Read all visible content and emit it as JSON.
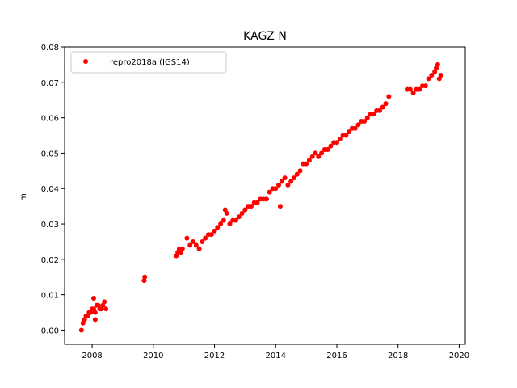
{
  "chart_data": {
    "type": "scatter",
    "title": "KAGZ N",
    "xlabel": "",
    "ylabel": "m",
    "xlim": [
      2007.1,
      2020.2
    ],
    "ylim": [
      -0.004,
      0.08
    ],
    "x_ticks": [
      2008,
      2010,
      2012,
      2014,
      2016,
      2018,
      2020
    ],
    "y_ticks": [
      0.0,
      0.01,
      0.02,
      0.03,
      0.04,
      0.05,
      0.06,
      0.07,
      0.08
    ],
    "x_tick_labels": [
      "2008",
      "2010",
      "2012",
      "2014",
      "2016",
      "2018",
      "2020"
    ],
    "y_tick_labels": [
      "0.00",
      "0.01",
      "0.02",
      "0.03",
      "0.04",
      "0.05",
      "0.06",
      "0.07",
      "0.08"
    ],
    "grid": false,
    "legend": {
      "position": "upper-left",
      "entries": [
        "repro2018a (IGS14)"
      ]
    },
    "series": [
      {
        "name": "repro2018a (IGS14)",
        "color": "#ff0000",
        "marker": "circle",
        "points": [
          [
            2007.65,
            0.0
          ],
          [
            2007.7,
            0.002
          ],
          [
            2007.75,
            0.003
          ],
          [
            2007.8,
            0.004
          ],
          [
            2007.85,
            0.004
          ],
          [
            2007.9,
            0.005
          ],
          [
            2007.95,
            0.005
          ],
          [
            2008.0,
            0.006
          ],
          [
            2008.05,
            0.006
          ],
          [
            2008.1,
            0.005
          ],
          [
            2008.15,
            0.007
          ],
          [
            2008.2,
            0.007
          ],
          [
            2008.25,
            0.006
          ],
          [
            2008.3,
            0.006
          ],
          [
            2008.35,
            0.007
          ],
          [
            2008.4,
            0.008
          ],
          [
            2008.45,
            0.006
          ],
          [
            2008.05,
            0.009
          ],
          [
            2008.1,
            0.003
          ],
          [
            2009.7,
            0.014
          ],
          [
            2009.72,
            0.015
          ],
          [
            2010.75,
            0.021
          ],
          [
            2010.8,
            0.022
          ],
          [
            2010.85,
            0.023
          ],
          [
            2010.9,
            0.022
          ],
          [
            2010.95,
            0.023
          ],
          [
            2011.1,
            0.026
          ],
          [
            2011.2,
            0.024
          ],
          [
            2011.3,
            0.025
          ],
          [
            2011.4,
            0.024
          ],
          [
            2011.5,
            0.023
          ],
          [
            2011.6,
            0.025
          ],
          [
            2011.7,
            0.026
          ],
          [
            2011.8,
            0.027
          ],
          [
            2011.9,
            0.027
          ],
          [
            2012.0,
            0.028
          ],
          [
            2012.1,
            0.029
          ],
          [
            2012.2,
            0.03
          ],
          [
            2012.3,
            0.031
          ],
          [
            2012.4,
            0.033
          ],
          [
            2012.5,
            0.03
          ],
          [
            2012.6,
            0.031
          ],
          [
            2012.7,
            0.031
          ],
          [
            2012.8,
            0.032
          ],
          [
            2012.9,
            0.033
          ],
          [
            2013.0,
            0.034
          ],
          [
            2013.1,
            0.035
          ],
          [
            2013.2,
            0.035
          ],
          [
            2013.3,
            0.036
          ],
          [
            2013.4,
            0.036
          ],
          [
            2013.5,
            0.037
          ],
          [
            2013.6,
            0.037
          ],
          [
            2013.7,
            0.037
          ],
          [
            2013.8,
            0.039
          ],
          [
            2013.9,
            0.04
          ],
          [
            2014.0,
            0.04
          ],
          [
            2014.1,
            0.041
          ],
          [
            2014.2,
            0.042
          ],
          [
            2014.3,
            0.043
          ],
          [
            2014.4,
            0.041
          ],
          [
            2014.5,
            0.042
          ],
          [
            2014.6,
            0.043
          ],
          [
            2014.7,
            0.044
          ],
          [
            2014.8,
            0.045
          ],
          [
            2014.9,
            0.047
          ],
          [
            2015.0,
            0.047
          ],
          [
            2015.1,
            0.048
          ],
          [
            2015.2,
            0.049
          ],
          [
            2015.3,
            0.05
          ],
          [
            2015.4,
            0.049
          ],
          [
            2015.5,
            0.05
          ],
          [
            2015.6,
            0.051
          ],
          [
            2015.7,
            0.051
          ],
          [
            2015.8,
            0.052
          ],
          [
            2015.9,
            0.053
          ],
          [
            2016.0,
            0.053
          ],
          [
            2016.1,
            0.054
          ],
          [
            2016.2,
            0.055
          ],
          [
            2016.3,
            0.055
          ],
          [
            2016.4,
            0.056
          ],
          [
            2016.5,
            0.057
          ],
          [
            2016.6,
            0.057
          ],
          [
            2016.7,
            0.058
          ],
          [
            2016.8,
            0.059
          ],
          [
            2016.9,
            0.059
          ],
          [
            2017.0,
            0.06
          ],
          [
            2017.1,
            0.061
          ],
          [
            2017.2,
            0.061
          ],
          [
            2017.3,
            0.062
          ],
          [
            2017.4,
            0.062
          ],
          [
            2017.5,
            0.063
          ],
          [
            2017.6,
            0.064
          ],
          [
            2017.7,
            0.066
          ],
          [
            2014.15,
            0.035
          ],
          [
            2012.35,
            0.034
          ],
          [
            2018.3,
            0.068
          ],
          [
            2018.4,
            0.068
          ],
          [
            2018.5,
            0.067
          ],
          [
            2018.6,
            0.068
          ],
          [
            2018.7,
            0.068
          ],
          [
            2018.8,
            0.069
          ],
          [
            2018.9,
            0.069
          ],
          [
            2019.0,
            0.071
          ],
          [
            2019.1,
            0.072
          ],
          [
            2019.2,
            0.073
          ],
          [
            2019.3,
            0.075
          ],
          [
            2019.4,
            0.072
          ],
          [
            2019.35,
            0.071
          ],
          [
            2019.25,
            0.074
          ]
        ]
      }
    ]
  }
}
